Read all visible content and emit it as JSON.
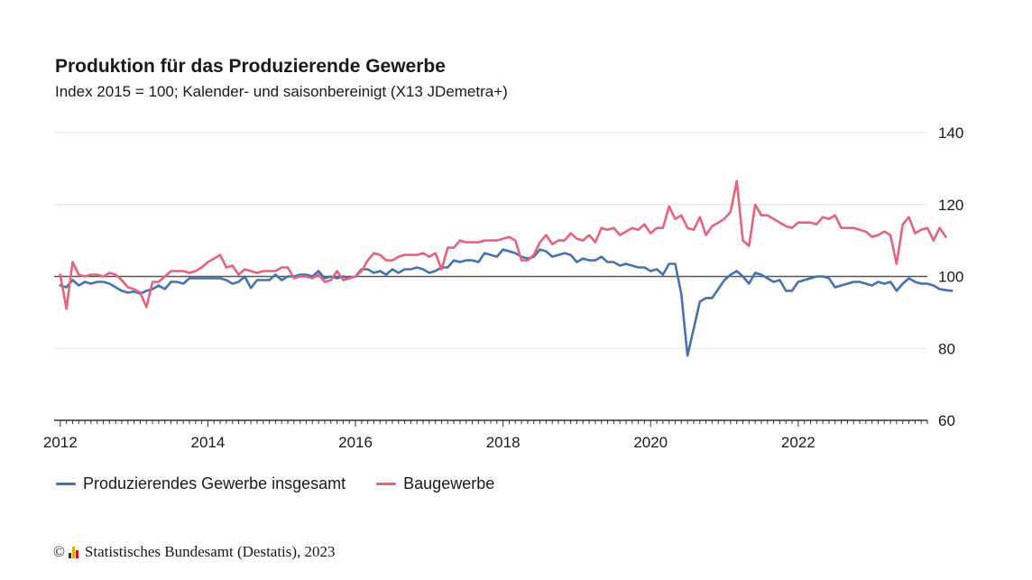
{
  "chart_data": {
    "type": "line",
    "title": "Produktion für das Produzierende Gewerbe",
    "subtitle": "Index 2015 = 100; Kalender- und saisonbereinigt (X13 JDemetra+)",
    "xlabel": "",
    "ylabel": "",
    "x_start": "2012-01",
    "x_tick_labels": [
      "2012",
      "2014",
      "2016",
      "2018",
      "2020",
      "2022"
    ],
    "xlim": [
      "2011-12",
      "2023-10"
    ],
    "ylim": [
      60,
      140
    ],
    "y_ticks": [
      60,
      80,
      100,
      120,
      140
    ],
    "y_axis_position": "right",
    "reference_line": 100,
    "grid": true,
    "legend_position": "bottom-left",
    "series": [
      {
        "name": "Produzierendes Gewerbe insgesamt",
        "color": "#4472b4",
        "values": [
          97.5,
          97.0,
          99.0,
          97.5,
          98.5,
          98.0,
          98.5,
          98.5,
          98.0,
          97.0,
          96.0,
          95.5,
          95.8,
          95.2,
          96.0,
          96.5,
          97.5,
          96.5,
          98.5,
          98.5,
          98.0,
          99.5,
          99.5,
          99.5,
          99.5,
          99.5,
          99.5,
          99.0,
          98.0,
          98.5,
          100.0,
          96.8,
          99.0,
          99.0,
          99.0,
          100.5,
          99.0,
          100.0,
          100.0,
          100.5,
          100.5,
          100.0,
          101.5,
          99.5,
          100.0,
          99.5,
          100.0,
          99.5,
          100.0,
          102.0,
          102.0,
          101.0,
          101.5,
          100.5,
          102.0,
          101.0,
          102.0,
          102.0,
          102.5,
          102.0,
          101.0,
          101.5,
          102.5,
          102.5,
          104.5,
          104.0,
          104.5,
          104.5,
          104.0,
          106.5,
          106.0,
          105.5,
          107.5,
          107.0,
          106.5,
          105.5,
          105.0,
          105.5,
          107.5,
          107.0,
          105.5,
          106.0,
          106.5,
          106.0,
          104.0,
          105.0,
          104.5,
          104.5,
          105.5,
          104.0,
          104.0,
          103.0,
          103.5,
          103.0,
          102.5,
          102.5,
          101.5,
          102.0,
          100.5,
          103.5,
          103.5,
          95.0,
          78.0,
          85.5,
          93.0,
          94.0,
          94.0,
          96.5,
          99.0,
          100.5,
          101.5,
          100.0,
          98.0,
          101.0,
          100.5,
          99.5,
          98.5,
          99.0,
          96.0,
          96.0,
          98.5,
          99.0,
          99.5,
          100.0,
          100.0,
          99.5,
          97.0,
          97.5,
          98.0,
          98.5,
          98.5,
          98.0,
          97.5,
          98.5,
          98.0,
          98.5,
          96.0,
          98.0,
          99.5,
          98.5,
          98.0,
          98.0,
          97.5,
          96.5,
          96.2,
          96.0
        ]
      },
      {
        "name": "Baugewerbe",
        "color": "#e8637a",
        "values": [
          100.5,
          91.0,
          104.0,
          100.5,
          100.0,
          100.5,
          100.5,
          100.0,
          101.0,
          100.5,
          99.0,
          97.0,
          96.5,
          95.5,
          91.5,
          98.5,
          98.5,
          100.0,
          101.5,
          101.5,
          101.5,
          101.0,
          101.5,
          102.5,
          104.0,
          105.0,
          106.0,
          102.5,
          103.0,
          100.5,
          102.0,
          101.5,
          101.0,
          101.5,
          101.5,
          101.5,
          102.5,
          102.5,
          99.5,
          100.0,
          100.0,
          99.5,
          100.5,
          98.5,
          99.0,
          101.5,
          99.0,
          99.5,
          100.0,
          101.5,
          104.5,
          106.5,
          106.0,
          104.5,
          104.5,
          105.5,
          106.0,
          106.0,
          106.0,
          106.5,
          105.5,
          106.5,
          102.0,
          108.0,
          108.0,
          110.0,
          109.5,
          109.5,
          109.5,
          110.0,
          110.0,
          110.0,
          110.5,
          111.0,
          110.0,
          104.5,
          104.5,
          106.0,
          109.5,
          111.5,
          109.0,
          110.0,
          110.0,
          112.0,
          110.5,
          110.0,
          111.5,
          109.5,
          113.5,
          113.0,
          113.5,
          111.5,
          112.5,
          113.5,
          113.0,
          114.5,
          112.0,
          113.5,
          113.5,
          119.5,
          116.0,
          117.0,
          113.5,
          113.0,
          116.5,
          111.5,
          114.0,
          115.0,
          116.0,
          118.0,
          126.5,
          110.0,
          108.5,
          120.0,
          117.0,
          117.0,
          116.0,
          115.0,
          114.0,
          113.5,
          115.0,
          115.0,
          115.0,
          114.5,
          116.5,
          116.0,
          117.0,
          113.5,
          113.5,
          113.5,
          113.0,
          112.5,
          111.0,
          111.5,
          112.5,
          111.5,
          103.5,
          114.5,
          116.5,
          112.0,
          113.0,
          113.5,
          110.0,
          113.5,
          111.0
        ]
      }
    ]
  },
  "source": {
    "copyright_symbol": "©",
    "text": "Statistisches Bundesamt (Destatis), 2023"
  }
}
